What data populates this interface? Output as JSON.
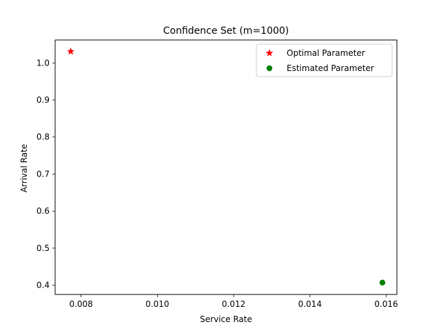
{
  "chart_data": {
    "type": "scatter",
    "title": "Confidence Set (m=1000)",
    "xlabel": "Service Rate",
    "ylabel": "Arrival Rate",
    "xlim": [
      0.00732,
      0.01628
    ],
    "ylim": [
      0.375,
      1.062
    ],
    "xticks": [
      0.008,
      0.01,
      0.012,
      0.014,
      0.016
    ],
    "xtick_labels": [
      "0.008",
      "0.010",
      "0.012",
      "0.014",
      "0.016"
    ],
    "yticks": [
      0.4,
      0.5,
      0.6,
      0.7,
      0.8,
      0.9,
      1.0
    ],
    "ytick_labels": [
      "0.4",
      "0.5",
      "0.6",
      "0.7",
      "0.8",
      "0.9",
      "1.0"
    ],
    "grid": false,
    "legend_position": "top-right",
    "series": [
      {
        "name": "Optimal Parameter",
        "marker": "star",
        "color": "#ff0000",
        "points": [
          {
            "x": 0.00773,
            "y": 1.031
          }
        ]
      },
      {
        "name": "Estimated Parameter",
        "marker": "circle",
        "color": "#008000",
        "points": [
          {
            "x": 0.0159,
            "y": 0.407
          }
        ]
      }
    ]
  }
}
